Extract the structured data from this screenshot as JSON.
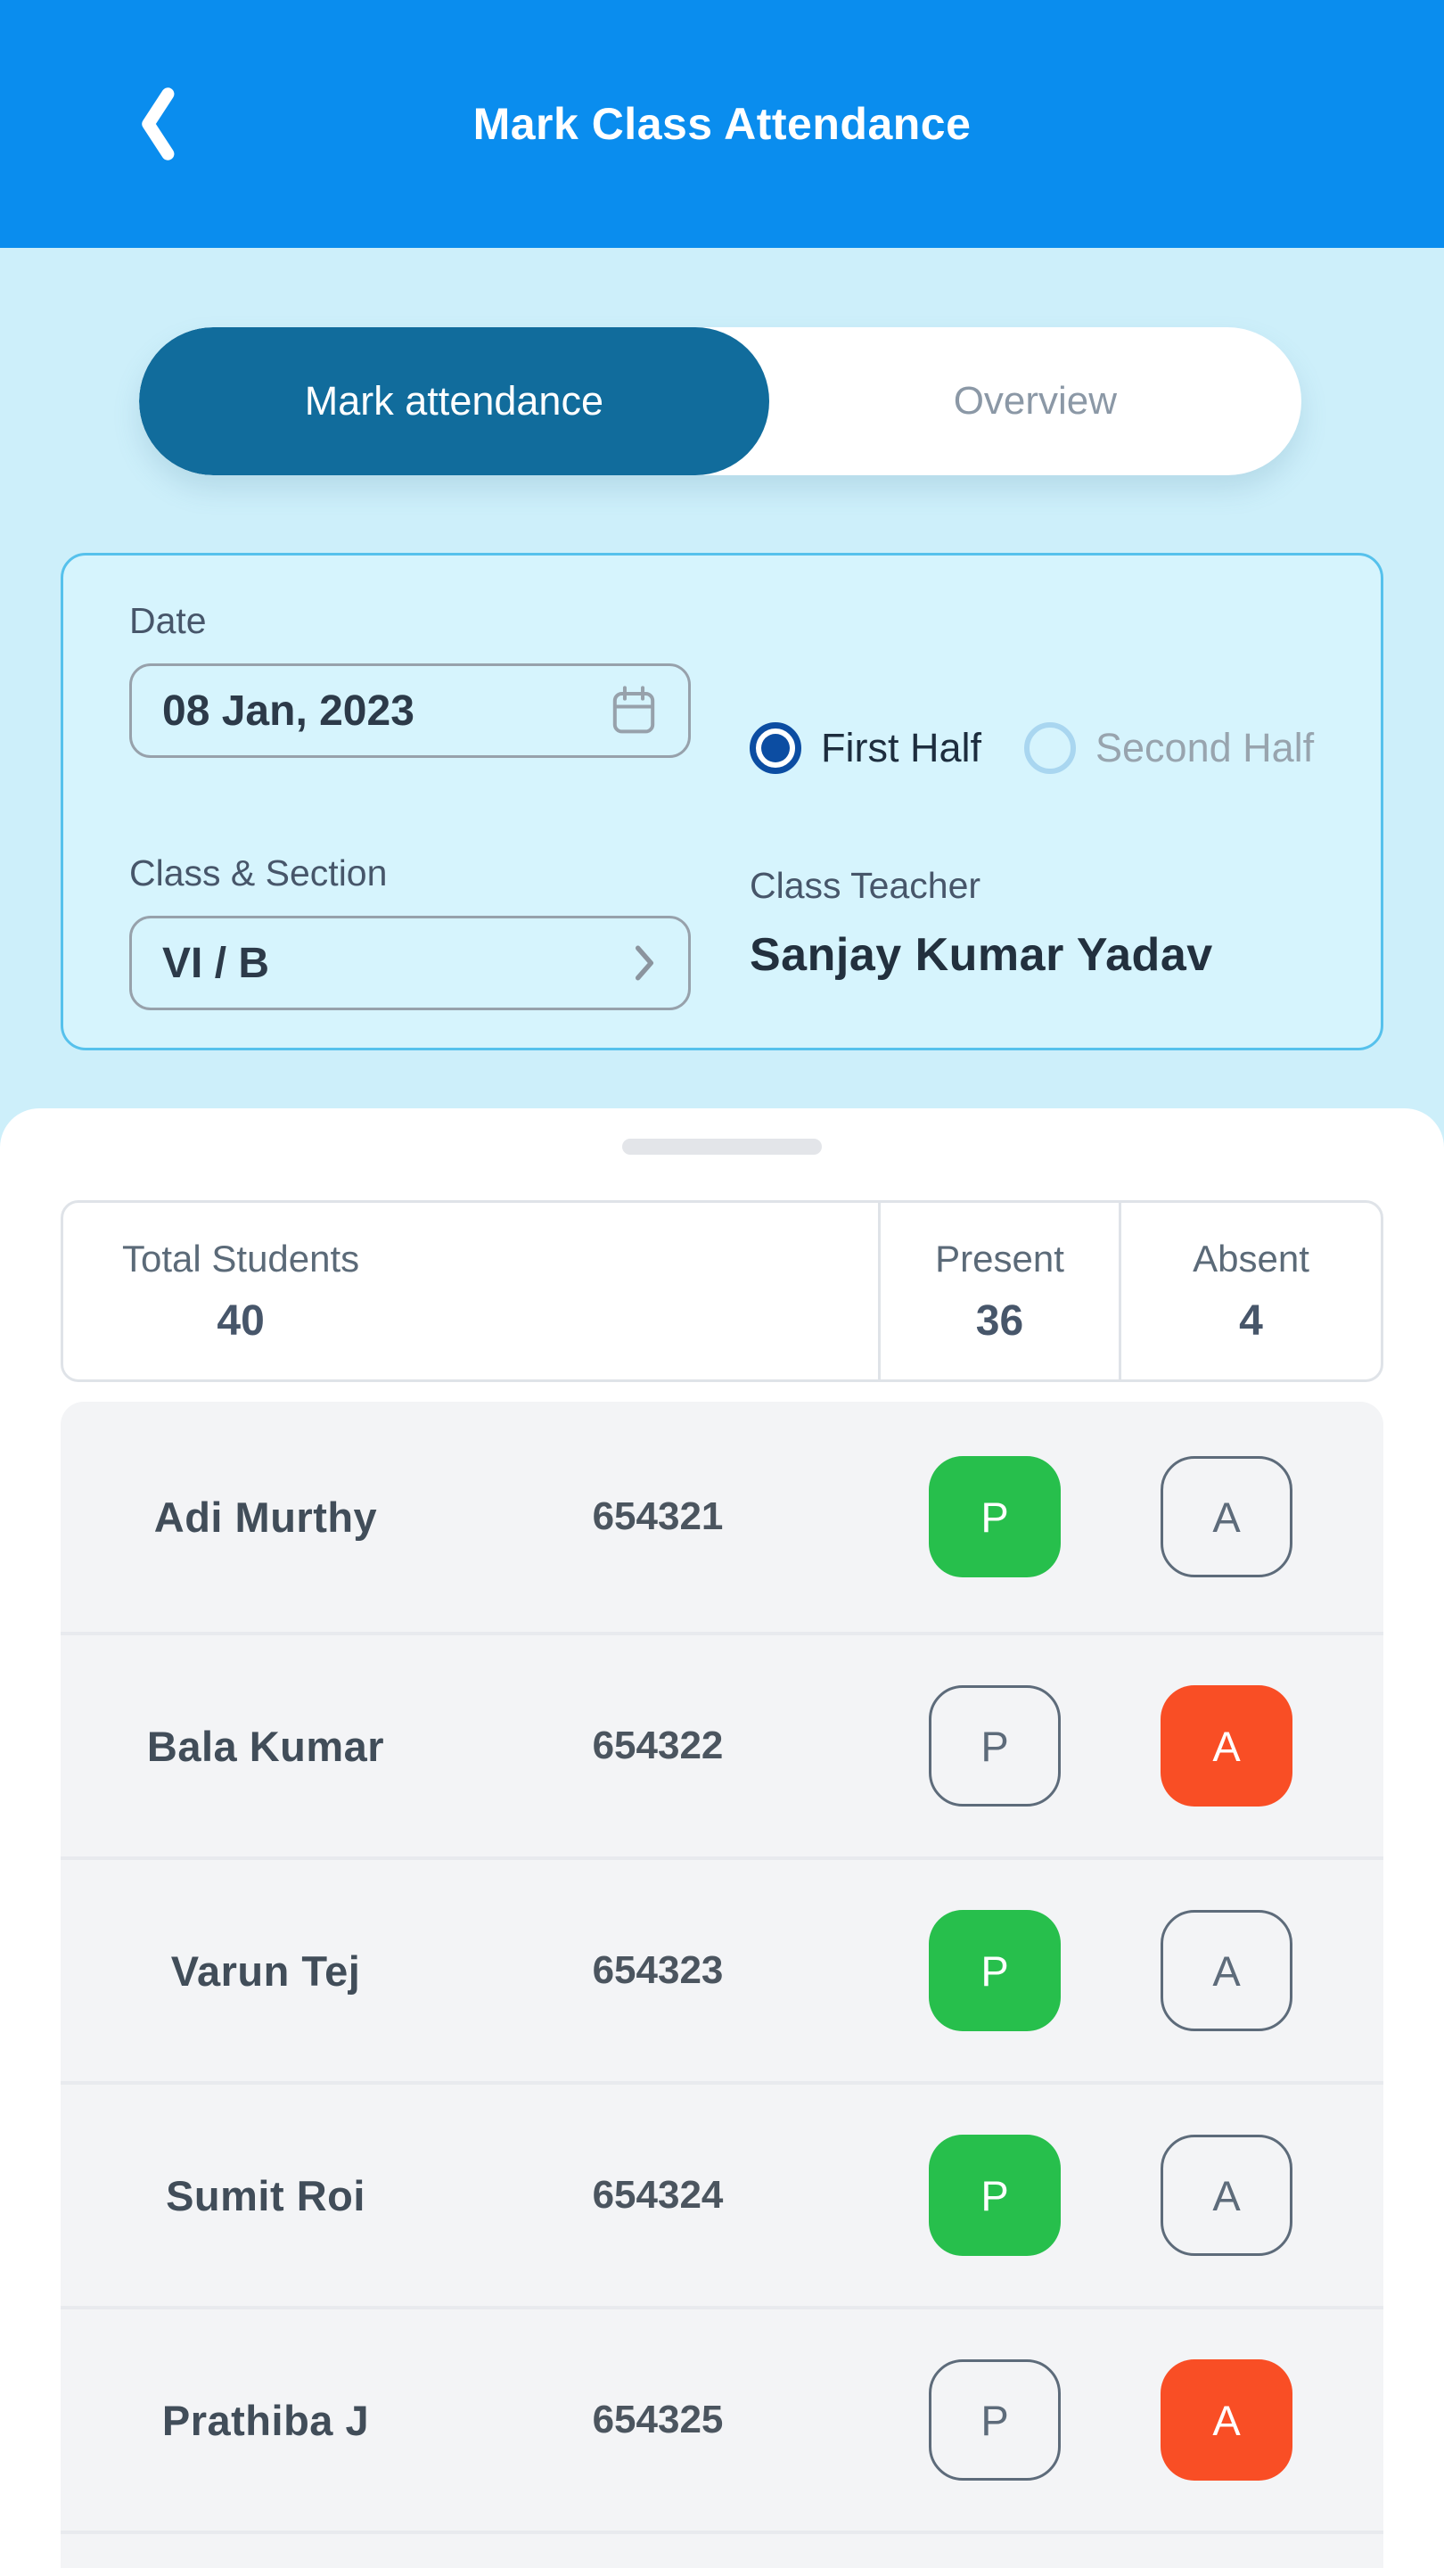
{
  "header": {
    "title": "Mark Class Attendance",
    "back_icon": "chevron-left-icon"
  },
  "tabs": {
    "mark_label": "Mark attendance",
    "overview_label": "Overview"
  },
  "filters": {
    "date_label": "Date",
    "date_value": "08 Jan, 2023",
    "half_options": [
      {
        "label": "First Half",
        "selected": true
      },
      {
        "label": "Second Half",
        "selected": false
      }
    ],
    "class_label": "Class & Section",
    "class_value": "VI / B",
    "teacher_label": "Class Teacher",
    "teacher_name": "Sanjay Kumar Yadav"
  },
  "summary": {
    "total_label": "Total Students",
    "total_value": "40",
    "present_label": "Present",
    "present_value": "36",
    "absent_label": "Absent",
    "absent_value": "4"
  },
  "attendance_buttons": {
    "present_label": "P",
    "absent_label": "A"
  },
  "students": [
    {
      "name": "Adi Murthy",
      "roll": "654321",
      "status": "present"
    },
    {
      "name": "Bala Kumar",
      "roll": "654322",
      "status": "absent"
    },
    {
      "name": "Varun Tej",
      "roll": "654323",
      "status": "present"
    },
    {
      "name": "Sumit Roi",
      "roll": "654324",
      "status": "present"
    },
    {
      "name": "Prathiba J",
      "roll": "654325",
      "status": "absent"
    }
  ],
  "colors": {
    "header": "#0a8dee",
    "tab_active": "#116c9c",
    "present": "#27bf4c",
    "absent": "#f94e25",
    "radio": "#0c4da2",
    "card_border": "#56c1ec",
    "card_bg": "#d6f4fd",
    "page_bg": "#cdeffa"
  }
}
